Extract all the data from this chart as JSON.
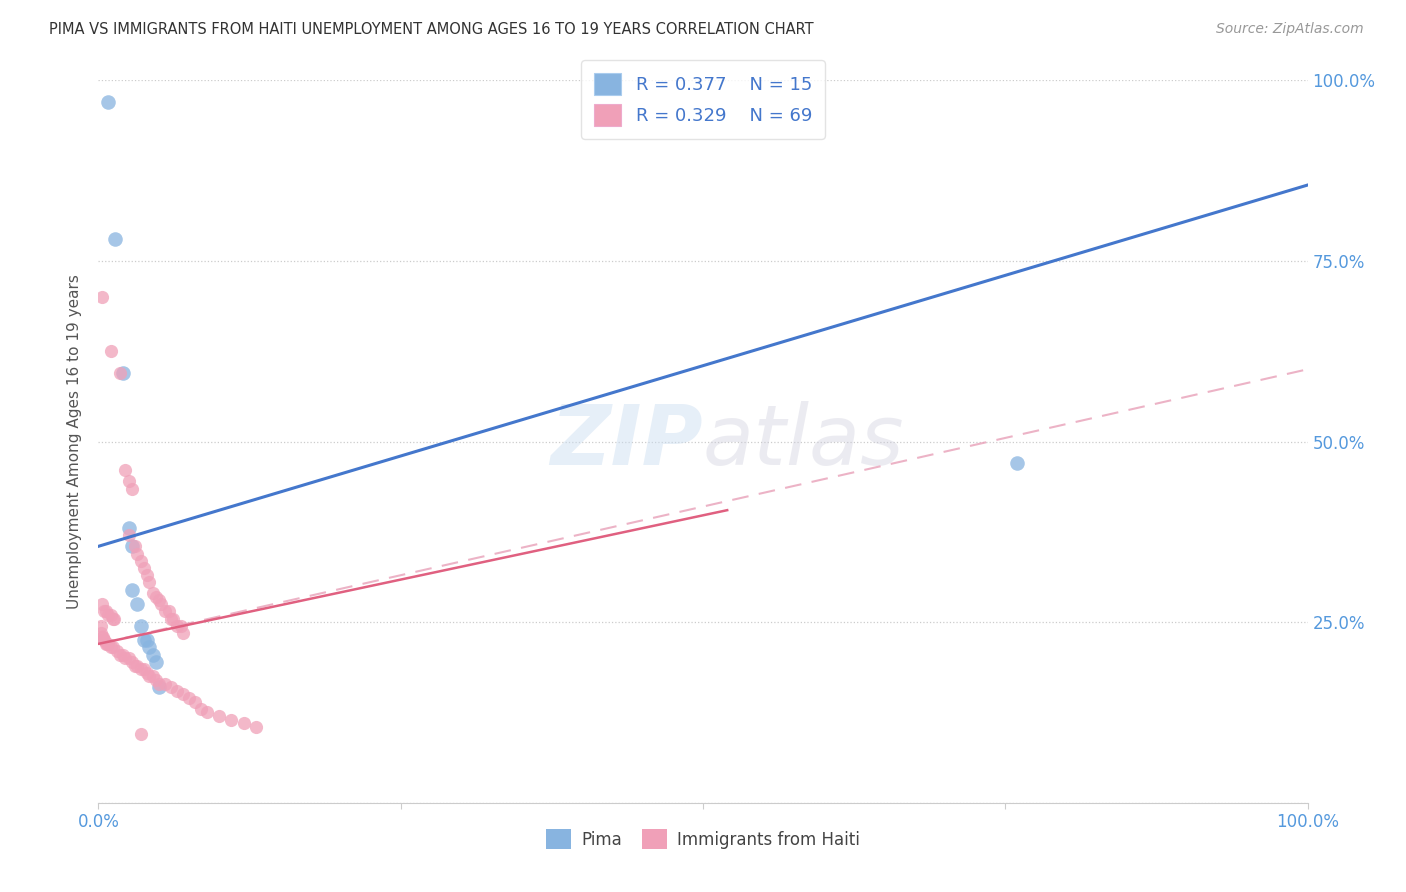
{
  "title": "PIMA VS IMMIGRANTS FROM HAITI UNEMPLOYMENT AMONG AGES 16 TO 19 YEARS CORRELATION CHART",
  "source": "Source: ZipAtlas.com",
  "ylabel": "Unemployment Among Ages 16 to 19 years",
  "xlim": [
    0,
    1
  ],
  "ylim": [
    0,
    1
  ],
  "x_tick_positions": [
    0.0,
    0.25,
    0.5,
    0.75,
    1.0
  ],
  "x_tick_labels": [
    "0.0%",
    "",
    "",
    "",
    "100.0%"
  ],
  "y_right_tick_labels": [
    "",
    "25.0%",
    "50.0%",
    "75.0%",
    "100.0%"
  ],
  "watermark": "ZIPatlas",
  "legend_r1": "R = 0.377",
  "legend_n1": "N = 15",
  "legend_r2": "R = 0.329",
  "legend_n2": "N = 69",
  "pima_color": "#88b4e0",
  "haiti_color": "#f0a0b8",
  "pima_line_color": "#4477cc",
  "haiti_line_color": "#e06080",
  "haiti_dash_color": "#e8a0b8",
  "pima_line": [
    [
      0.0,
      0.355
    ],
    [
      1.0,
      0.855
    ]
  ],
  "haiti_solid_line": [
    [
      0.0,
      0.22
    ],
    [
      0.52,
      0.405
    ]
  ],
  "haiti_dash_line": [
    [
      0.0,
      0.22
    ],
    [
      1.0,
      0.6
    ]
  ],
  "pima_points": [
    [
      0.008,
      0.97
    ],
    [
      0.014,
      0.78
    ],
    [
      0.02,
      0.595
    ],
    [
      0.025,
      0.38
    ],
    [
      0.028,
      0.355
    ],
    [
      0.028,
      0.295
    ],
    [
      0.032,
      0.275
    ],
    [
      0.035,
      0.245
    ],
    [
      0.038,
      0.225
    ],
    [
      0.04,
      0.225
    ],
    [
      0.042,
      0.215
    ],
    [
      0.045,
      0.205
    ],
    [
      0.048,
      0.195
    ],
    [
      0.05,
      0.16
    ],
    [
      0.76,
      0.47
    ]
  ],
  "haiti_points": [
    [
      0.003,
      0.7
    ],
    [
      0.01,
      0.625
    ],
    [
      0.018,
      0.595
    ],
    [
      0.022,
      0.46
    ],
    [
      0.025,
      0.445
    ],
    [
      0.028,
      0.435
    ],
    [
      0.003,
      0.275
    ],
    [
      0.005,
      0.265
    ],
    [
      0.006,
      0.265
    ],
    [
      0.008,
      0.26
    ],
    [
      0.01,
      0.26
    ],
    [
      0.012,
      0.255
    ],
    [
      0.013,
      0.255
    ],
    [
      0.025,
      0.37
    ],
    [
      0.03,
      0.355
    ],
    [
      0.032,
      0.345
    ],
    [
      0.035,
      0.335
    ],
    [
      0.038,
      0.325
    ],
    [
      0.04,
      0.315
    ],
    [
      0.042,
      0.305
    ],
    [
      0.045,
      0.29
    ],
    [
      0.048,
      0.285
    ],
    [
      0.05,
      0.28
    ],
    [
      0.052,
      0.275
    ],
    [
      0.055,
      0.265
    ],
    [
      0.058,
      0.265
    ],
    [
      0.06,
      0.255
    ],
    [
      0.062,
      0.255
    ],
    [
      0.065,
      0.245
    ],
    [
      0.068,
      0.245
    ],
    [
      0.07,
      0.235
    ],
    [
      0.005,
      0.225
    ],
    [
      0.008,
      0.22
    ],
    [
      0.01,
      0.215
    ],
    [
      0.012,
      0.215
    ],
    [
      0.015,
      0.21
    ],
    [
      0.018,
      0.205
    ],
    [
      0.02,
      0.205
    ],
    [
      0.022,
      0.2
    ],
    [
      0.025,
      0.2
    ],
    [
      0.028,
      0.195
    ],
    [
      0.03,
      0.19
    ],
    [
      0.032,
      0.19
    ],
    [
      0.035,
      0.185
    ],
    [
      0.038,
      0.185
    ],
    [
      0.04,
      0.18
    ],
    [
      0.042,
      0.175
    ],
    [
      0.045,
      0.175
    ],
    [
      0.048,
      0.17
    ],
    [
      0.05,
      0.165
    ],
    [
      0.055,
      0.165
    ],
    [
      0.06,
      0.16
    ],
    [
      0.065,
      0.155
    ],
    [
      0.07,
      0.15
    ],
    [
      0.075,
      0.145
    ],
    [
      0.08,
      0.14
    ],
    [
      0.085,
      0.13
    ],
    [
      0.09,
      0.125
    ],
    [
      0.1,
      0.12
    ],
    [
      0.11,
      0.115
    ],
    [
      0.12,
      0.11
    ],
    [
      0.13,
      0.105
    ],
    [
      0.002,
      0.245
    ],
    [
      0.002,
      0.235
    ],
    [
      0.003,
      0.23
    ],
    [
      0.004,
      0.23
    ],
    [
      0.005,
      0.225
    ],
    [
      0.006,
      0.22
    ],
    [
      0.007,
      0.22
    ],
    [
      0.035,
      0.095
    ]
  ]
}
